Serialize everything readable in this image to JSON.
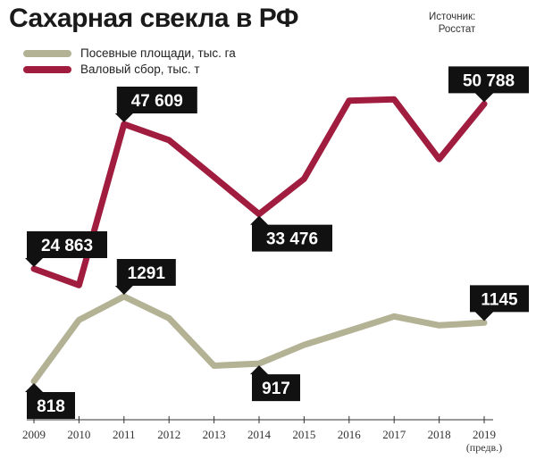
{
  "title": "Сахарная свекла в РФ",
  "source": {
    "line1": "Источник:",
    "line2": "Росстат"
  },
  "colors": {
    "area": "#b3b295",
    "harvest": "#a11d3f",
    "callout_bg": "#111111",
    "callout_text": "#ffffff",
    "axis": "#333333"
  },
  "chart_data": {
    "type": "line",
    "x": [
      "2009",
      "2010",
      "2011",
      "2012",
      "2013",
      "2014",
      "2015",
      "2016",
      "2017",
      "2018",
      "2019"
    ],
    "x_tick_note": {
      "2019": "(предв.)"
    },
    "series": [
      {
        "name": "Посевные площади, тыс. га",
        "color": "#b3b295",
        "values": [
          818,
          1160,
          1291,
          1170,
          905,
          917,
          1021,
          1100,
          1180,
          1130,
          1145
        ]
      },
      {
        "name": "Валовый сбор, тыс. т",
        "color": "#a11d3f",
        "values": [
          24863,
          22300,
          47609,
          45100,
          39300,
          33476,
          39000,
          51300,
          51500,
          42100,
          50788
        ]
      }
    ],
    "labels": [
      {
        "series": 1,
        "index": 0,
        "text": "24 863",
        "side": "above"
      },
      {
        "series": 1,
        "index": 2,
        "text": "47 609",
        "side": "above"
      },
      {
        "series": 1,
        "index": 5,
        "text": "33 476",
        "side": "below"
      },
      {
        "series": 1,
        "index": 10,
        "text": "50 788",
        "side": "above"
      },
      {
        "series": 0,
        "index": 0,
        "text": "818",
        "side": "below"
      },
      {
        "series": 0,
        "index": 2,
        "text": "1291",
        "side": "above"
      },
      {
        "series": 0,
        "index": 5,
        "text": "917",
        "side": "below"
      },
      {
        "series": 0,
        "index": 10,
        "text": "1145",
        "side": "above"
      }
    ]
  }
}
